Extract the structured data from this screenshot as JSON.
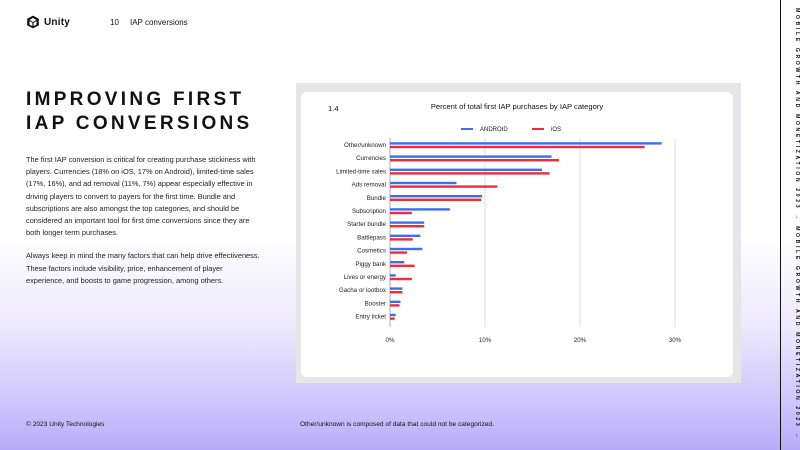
{
  "header": {
    "brand": "Unity",
    "page_number": "10",
    "section": "IAP conversions"
  },
  "heading": "IMPROVING FIRST IAP CONVERSIONS",
  "paragraphs": [
    "The first IAP conversion is critical for creating purchase stickiness with players. Currencies (18% on iOS, 17% on Android), limited-time sales (17%, 16%), and ad removal (11%, 7%) appear especially effective in driving players to convert to payers for the first time. Bundle and subscriptions are also amongst the top categories, and should be considered an important tool for first time conversions since they are both longer term purchases.",
    "Always keep in mind the many factors that can help drive effectiveness. These factors include visibility, price, enhancement of player experience, and boosts to game progression, among others."
  ],
  "footer": {
    "copyright": "© 2023 Unity Technologies",
    "note": "Other/unknown is composed of data that could not be categorized."
  },
  "side_text": "MOBILE GROWTH AND MONETIZATION 2023 → MOBILE GROWTH AND MONETIZATION 2023 →",
  "figure_number": "1.4",
  "colors": {
    "android": "#3b6ff0",
    "ios": "#ef2b3c",
    "accent": "#b8acf8"
  },
  "chart_data": {
    "type": "bar",
    "orientation": "horizontal",
    "title": "Percent of total first IAP purchases by IAP category",
    "categories": [
      "Other/unknown",
      "Currencies",
      "Limited-time sales",
      "Ads removal",
      "Bundle",
      "Subscription",
      "Starter bundle",
      "Battlepass",
      "Cosmetics",
      "Piggy bank",
      "Lives or energy",
      "Gacha or lootbox",
      "Booster",
      "Entry ticket"
    ],
    "series": [
      {
        "name": "ANDROID",
        "color": "#3b6ff0",
        "values": [
          28.6,
          17.0,
          16.0,
          7.0,
          9.7,
          6.3,
          3.6,
          3.2,
          3.4,
          1.5,
          0.6,
          1.3,
          1.1,
          0.6
        ]
      },
      {
        "name": "iOS",
        "color": "#ef2b3c",
        "values": [
          26.8,
          17.8,
          16.8,
          11.3,
          9.6,
          2.3,
          3.6,
          2.4,
          1.8,
          2.6,
          2.3,
          1.3,
          1.0,
          0.5
        ]
      }
    ],
    "xlim": [
      0,
      30
    ],
    "xticks": [
      "0%",
      "10%",
      "20%",
      "30%"
    ],
    "grid": true,
    "legend_position": "top-center"
  }
}
